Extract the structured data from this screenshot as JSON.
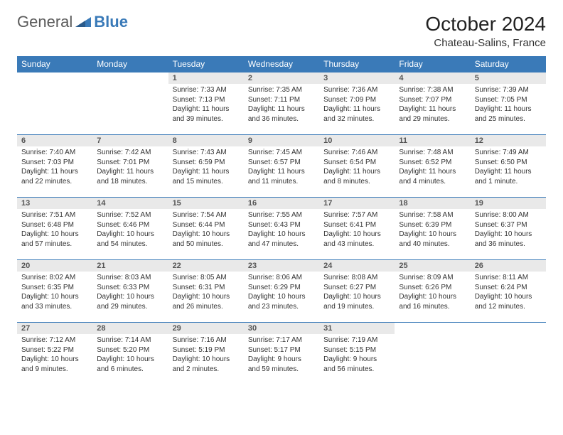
{
  "brand": {
    "part1": "General",
    "part2": "Blue"
  },
  "title": "October 2024",
  "location": "Chateau-Salins, France",
  "colors": {
    "header_bg": "#3a7ab8",
    "header_text": "#ffffff",
    "daynum_bg": "#e9e9e9",
    "daynum_text": "#555555",
    "body_text": "#333333",
    "rule": "#3a7ab8"
  },
  "weekdays": [
    "Sunday",
    "Monday",
    "Tuesday",
    "Wednesday",
    "Thursday",
    "Friday",
    "Saturday"
  ],
  "weeks": [
    [
      null,
      null,
      {
        "n": "1",
        "sr": "Sunrise: 7:33 AM",
        "ss": "Sunset: 7:13 PM",
        "dl": "Daylight: 11 hours and 39 minutes."
      },
      {
        "n": "2",
        "sr": "Sunrise: 7:35 AM",
        "ss": "Sunset: 7:11 PM",
        "dl": "Daylight: 11 hours and 36 minutes."
      },
      {
        "n": "3",
        "sr": "Sunrise: 7:36 AM",
        "ss": "Sunset: 7:09 PM",
        "dl": "Daylight: 11 hours and 32 minutes."
      },
      {
        "n": "4",
        "sr": "Sunrise: 7:38 AM",
        "ss": "Sunset: 7:07 PM",
        "dl": "Daylight: 11 hours and 29 minutes."
      },
      {
        "n": "5",
        "sr": "Sunrise: 7:39 AM",
        "ss": "Sunset: 7:05 PM",
        "dl": "Daylight: 11 hours and 25 minutes."
      }
    ],
    [
      {
        "n": "6",
        "sr": "Sunrise: 7:40 AM",
        "ss": "Sunset: 7:03 PM",
        "dl": "Daylight: 11 hours and 22 minutes."
      },
      {
        "n": "7",
        "sr": "Sunrise: 7:42 AM",
        "ss": "Sunset: 7:01 PM",
        "dl": "Daylight: 11 hours and 18 minutes."
      },
      {
        "n": "8",
        "sr": "Sunrise: 7:43 AM",
        "ss": "Sunset: 6:59 PM",
        "dl": "Daylight: 11 hours and 15 minutes."
      },
      {
        "n": "9",
        "sr": "Sunrise: 7:45 AM",
        "ss": "Sunset: 6:57 PM",
        "dl": "Daylight: 11 hours and 11 minutes."
      },
      {
        "n": "10",
        "sr": "Sunrise: 7:46 AM",
        "ss": "Sunset: 6:54 PM",
        "dl": "Daylight: 11 hours and 8 minutes."
      },
      {
        "n": "11",
        "sr": "Sunrise: 7:48 AM",
        "ss": "Sunset: 6:52 PM",
        "dl": "Daylight: 11 hours and 4 minutes."
      },
      {
        "n": "12",
        "sr": "Sunrise: 7:49 AM",
        "ss": "Sunset: 6:50 PM",
        "dl": "Daylight: 11 hours and 1 minute."
      }
    ],
    [
      {
        "n": "13",
        "sr": "Sunrise: 7:51 AM",
        "ss": "Sunset: 6:48 PM",
        "dl": "Daylight: 10 hours and 57 minutes."
      },
      {
        "n": "14",
        "sr": "Sunrise: 7:52 AM",
        "ss": "Sunset: 6:46 PM",
        "dl": "Daylight: 10 hours and 54 minutes."
      },
      {
        "n": "15",
        "sr": "Sunrise: 7:54 AM",
        "ss": "Sunset: 6:44 PM",
        "dl": "Daylight: 10 hours and 50 minutes."
      },
      {
        "n": "16",
        "sr": "Sunrise: 7:55 AM",
        "ss": "Sunset: 6:43 PM",
        "dl": "Daylight: 10 hours and 47 minutes."
      },
      {
        "n": "17",
        "sr": "Sunrise: 7:57 AM",
        "ss": "Sunset: 6:41 PM",
        "dl": "Daylight: 10 hours and 43 minutes."
      },
      {
        "n": "18",
        "sr": "Sunrise: 7:58 AM",
        "ss": "Sunset: 6:39 PM",
        "dl": "Daylight: 10 hours and 40 minutes."
      },
      {
        "n": "19",
        "sr": "Sunrise: 8:00 AM",
        "ss": "Sunset: 6:37 PM",
        "dl": "Daylight: 10 hours and 36 minutes."
      }
    ],
    [
      {
        "n": "20",
        "sr": "Sunrise: 8:02 AM",
        "ss": "Sunset: 6:35 PM",
        "dl": "Daylight: 10 hours and 33 minutes."
      },
      {
        "n": "21",
        "sr": "Sunrise: 8:03 AM",
        "ss": "Sunset: 6:33 PM",
        "dl": "Daylight: 10 hours and 29 minutes."
      },
      {
        "n": "22",
        "sr": "Sunrise: 8:05 AM",
        "ss": "Sunset: 6:31 PM",
        "dl": "Daylight: 10 hours and 26 minutes."
      },
      {
        "n": "23",
        "sr": "Sunrise: 8:06 AM",
        "ss": "Sunset: 6:29 PM",
        "dl": "Daylight: 10 hours and 23 minutes."
      },
      {
        "n": "24",
        "sr": "Sunrise: 8:08 AM",
        "ss": "Sunset: 6:27 PM",
        "dl": "Daylight: 10 hours and 19 minutes."
      },
      {
        "n": "25",
        "sr": "Sunrise: 8:09 AM",
        "ss": "Sunset: 6:26 PM",
        "dl": "Daylight: 10 hours and 16 minutes."
      },
      {
        "n": "26",
        "sr": "Sunrise: 8:11 AM",
        "ss": "Sunset: 6:24 PM",
        "dl": "Daylight: 10 hours and 12 minutes."
      }
    ],
    [
      {
        "n": "27",
        "sr": "Sunrise: 7:12 AM",
        "ss": "Sunset: 5:22 PM",
        "dl": "Daylight: 10 hours and 9 minutes."
      },
      {
        "n": "28",
        "sr": "Sunrise: 7:14 AM",
        "ss": "Sunset: 5:20 PM",
        "dl": "Daylight: 10 hours and 6 minutes."
      },
      {
        "n": "29",
        "sr": "Sunrise: 7:16 AM",
        "ss": "Sunset: 5:19 PM",
        "dl": "Daylight: 10 hours and 2 minutes."
      },
      {
        "n": "30",
        "sr": "Sunrise: 7:17 AM",
        "ss": "Sunset: 5:17 PM",
        "dl": "Daylight: 9 hours and 59 minutes."
      },
      {
        "n": "31",
        "sr": "Sunrise: 7:19 AM",
        "ss": "Sunset: 5:15 PM",
        "dl": "Daylight: 9 hours and 56 minutes."
      },
      null,
      null
    ]
  ]
}
